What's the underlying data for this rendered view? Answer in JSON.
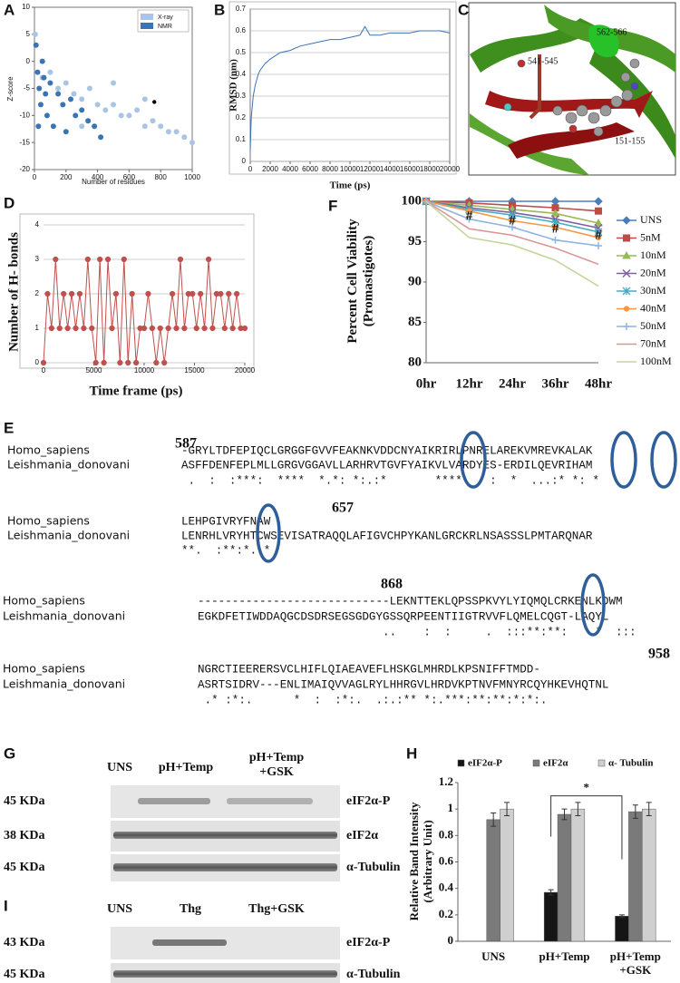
{
  "panel_labels": [
    "A",
    "B",
    "C",
    "D",
    "E",
    "F",
    "G",
    "H",
    "I"
  ],
  "chart_data": [
    {
      "type": "scatter",
      "xlabel": "Number of residues",
      "ylabel": "Z-score",
      "xlim": [
        0,
        1000
      ],
      "ylim": [
        -20,
        10
      ],
      "xticks": [
        0,
        200,
        400,
        600,
        800,
        1000
      ],
      "yticks": [
        10,
        5,
        0,
        -5,
        -10,
        -15,
        -20
      ],
      "grid": false,
      "legend": "upper right",
      "series": [
        {
          "name": "X-ray",
          "color": "#a9c4e4",
          "x": [
            5,
            50,
            100,
            150,
            200,
            250,
            300,
            350,
            400,
            450,
            500,
            550,
            600,
            650,
            700,
            750,
            800,
            850,
            900,
            950,
            1000,
            300,
            500,
            700
          ],
          "values": [
            5,
            -3,
            -2,
            -5,
            -4,
            -6,
            -7,
            -5,
            -8,
            -9,
            -8,
            -10,
            -10,
            -9,
            -12,
            -11,
            -12,
            -13,
            -13,
            -14,
            -15,
            -12,
            -4,
            -7
          ]
        },
        {
          "name": "NMR",
          "color": "#3a74b3",
          "x": [
            10,
            20,
            30,
            40,
            50,
            60,
            80,
            100,
            120,
            150,
            180,
            200,
            230,
            260,
            300,
            340,
            380,
            420,
            25,
            70
          ],
          "values": [
            3,
            -2,
            -5,
            -8,
            0,
            -3,
            -10,
            -4,
            -12,
            -6,
            -8,
            -13,
            -7,
            -10,
            -9,
            -11,
            -12,
            -14,
            -12,
            -6
          ]
        },
        {
          "color": "#000000",
          "x": [
            760
          ],
          "values": [
            -7.5
          ]
        }
      ]
    },
    {
      "type": "line",
      "xlabel": "Time (ps)",
      "ylabel": "RMSD (nm)",
      "xlim": [
        0,
        20000
      ],
      "ylim": [
        0,
        0.7
      ],
      "xticks": [
        0,
        2000,
        4000,
        6000,
        8000,
        10000,
        12000,
        14000,
        16000,
        18000,
        20000
      ],
      "yticks": [
        0,
        0.1,
        0.2,
        0.3,
        0.4,
        0.5,
        0.6,
        0.7
      ],
      "grid": true,
      "x": [
        0,
        100,
        300,
        500,
        800,
        1000,
        1500,
        2000,
        3000,
        4000,
        5000,
        6000,
        7000,
        8000,
        9000,
        10000,
        11000,
        11500,
        12000,
        13000,
        14000,
        15000,
        16000,
        17000,
        18000,
        19000,
        20000
      ],
      "series": [
        {
          "color": "#3a74b3",
          "values": [
            0.05,
            0.2,
            0.3,
            0.35,
            0.4,
            0.42,
            0.45,
            0.47,
            0.5,
            0.51,
            0.53,
            0.54,
            0.55,
            0.56,
            0.56,
            0.57,
            0.58,
            0.62,
            0.58,
            0.58,
            0.59,
            0.59,
            0.59,
            0.6,
            0.6,
            0.6,
            0.59
          ]
        }
      ]
    },
    {
      "type": "line",
      "xlabel": "Time frame (ps)",
      "ylabel": "Number of H- bonds",
      "xlim": [
        0,
        20000
      ],
      "ylim": [
        0,
        4
      ],
      "xticks": [
        0,
        5000,
        10000,
        15000,
        20000
      ],
      "yticks": [
        0,
        1,
        2,
        3,
        4
      ],
      "grid": true,
      "x": [
        0,
        400,
        800,
        1200,
        1600,
        2000,
        2400,
        2800,
        3200,
        3600,
        4000,
        4400,
        4800,
        5200,
        5600,
        6000,
        6400,
        6800,
        7200,
        7600,
        8000,
        8400,
        8800,
        9200,
        9600,
        10000,
        10400,
        10800,
        11200,
        11600,
        12000,
        12400,
        12800,
        13200,
        13600,
        14000,
        14400,
        14800,
        15200,
        15600,
        16000,
        16400,
        16800,
        17200,
        17600,
        18000,
        18400,
        18800,
        19200,
        19600,
        20000
      ],
      "series": [
        {
          "color": "#c0504d",
          "marker": "circle",
          "values": [
            0,
            2,
            1,
            3,
            1,
            2,
            1,
            2,
            1,
            2,
            1,
            3,
            1,
            0,
            3,
            0,
            3,
            1,
            2,
            0,
            3,
            0,
            2,
            0,
            1,
            1,
            2,
            1,
            0,
            1,
            0,
            1,
            2,
            1,
            3,
            1,
            2,
            2,
            1,
            2,
            1,
            3,
            1,
            2,
            2,
            1,
            2,
            1,
            2,
            1,
            1
          ]
        }
      ]
    },
    {
      "type": "line",
      "ylabel": "Percent Cell Viability\n(Promastigotes)",
      "categories": [
        "0hr",
        "12hr",
        "24hr",
        "36hr",
        "48hr"
      ],
      "ylim": [
        80,
        100
      ],
      "yticks": [
        80,
        85,
        90,
        95,
        100
      ],
      "grid": false,
      "legend": "right",
      "series": [
        {
          "name": "UNS",
          "color": "#4a7ebb",
          "marker": "diamond",
          "values": [
            100,
            100,
            100,
            100,
            100
          ]
        },
        {
          "name": "5nM",
          "color": "#be4b48",
          "marker": "square",
          "values": [
            100,
            99.8,
            99.5,
            99.2,
            98.8
          ]
        },
        {
          "name": "10nM",
          "color": "#98b954",
          "marker": "triangle",
          "values": [
            100,
            99.5,
            99,
            98.5,
            97.3
          ]
        },
        {
          "name": "20nM",
          "color": "#7d60a0",
          "marker": "x",
          "values": [
            100,
            99.2,
            98.6,
            97.8,
            96.7
          ]
        },
        {
          "name": "30nM",
          "color": "#46aac5",
          "marker": "star",
          "values": [
            100,
            99,
            98.3,
            97.4,
            96.2
          ]
        },
        {
          "name": "40nM",
          "color": "#f79646",
          "marker": "circle",
          "values": [
            100,
            98.8,
            97.6,
            96.8,
            95.5
          ]
        },
        {
          "name": "50nM",
          "color": "#8eb4e3",
          "marker": "plus",
          "values": [
            100,
            97.8,
            96.8,
            95.2,
            94.5
          ]
        },
        {
          "name": "70nM",
          "color": "#d99694",
          "values": [
            100,
            96.6,
            95.8,
            94.2,
            92.2
          ]
        },
        {
          "name": "100nM",
          "color": "#c3d69b",
          "values": [
            100,
            95.5,
            94.6,
            92.7,
            89.5
          ]
        }
      ],
      "annotations": [
        {
          "text": "#",
          "x": "12hr",
          "y": 98.1
        },
        {
          "text": "#",
          "x": "24hr",
          "y": 97.5
        },
        {
          "text": "#",
          "x": "36hr",
          "y": 96.5
        },
        {
          "text": "#",
          "x": "48hr",
          "y": 95.7
        }
      ]
    },
    {
      "type": "bar",
      "ylabel": "Relative Band Intensity\n(Arbitrary Unit)",
      "categories": [
        "UNS",
        "pH+Temp",
        "pH+Temp\n+GSK"
      ],
      "ylim": [
        0,
        1.2
      ],
      "yticks": [
        0,
        0.2,
        0.4,
        0.6,
        0.8,
        1,
        1.2
      ],
      "grid": false,
      "legend": "top",
      "series": [
        {
          "name": "eIF2α-P",
          "color": "#151515",
          "values": [
            null,
            0.37,
            0.19
          ],
          "errors": [
            null,
            0.02,
            0.01
          ]
        },
        {
          "name": "eIF2α",
          "color": "#7a7a7a",
          "values": [
            0.92,
            0.96,
            0.98
          ],
          "errors": [
            0.05,
            0.04,
            0.05
          ]
        },
        {
          "name": "α- Tubulin",
          "color": "#cfcfcf",
          "values": [
            1,
            1,
            1
          ],
          "errors": [
            0.05,
            0.05,
            0.05
          ]
        }
      ],
      "annotations": [
        {
          "text": "*",
          "from": "pH+Temp",
          "to": "pH+Temp\n+GSK",
          "y": 1.1
        }
      ]
    }
  ],
  "structure": {
    "labels": [
      "541-545",
      "562-566",
      "151-155"
    ]
  },
  "alignment": {
    "blocks": [
      {
        "number": 587,
        "rows": [
          {
            "name": "Homo_sapiens",
            "seq": "-GRYLTDFEPIQCLGRGGFGVVFEAKNKVDDCNYAIKRIRLPNRELAREKVMREVKALAK"
          },
          {
            "name": "Leishmania_donovani",
            "seq": "ASFFDENFEPLMLLGRGVGGAVLLARHRVTGVFYAIKVLVARDYES-ERDILQEVRIHAM"
          }
        ],
        "conservation": " .  :  :***:  ****  *.*: *:.:*       ****    :  *  ...:* *: *"
      },
      {
        "number": 657,
        "rows": [
          {
            "name": "Homo_sapiens",
            "seq": "LEHPGIVRYFNAW"
          },
          {
            "name": "Leishmania_donovani",
            "seq": "LENRHLVRYHTCWSEVISATRAQQLAFIGVCHPYKANLGRCKRLNSASSSLPMTARQNAR"
          }
        ],
        "conservation": "**.  :**:*..*"
      },
      {
        "number": 868,
        "rows": [
          {
            "name": "Homo_sapiens",
            "seq": "----------------------------LEKNTTEKLQPSSPKVYLYIQMQLCRKENLKDWM"
          },
          {
            "name": "Leishmania_donovani",
            "seq": "EGKDFETIWDDAQGCDSDRSEGSGDGYGSSQRPEENTIIGTRVVFLQMELCQGT-LAQYL"
          }
        ],
        "conservation": "                           ..    :  :     .  :::**:**:    *  :::"
      },
      {
        "number": 958,
        "rows": [
          {
            "name": "Homo_sapiens",
            "seq": "NGRCTIEERERSVCLHIFLQIAEAVEFLHSKGLMHRDLKPSNIFFTMDD-"
          },
          {
            "name": "Leishmania_donovani",
            "seq": "ASRTSIDRV---ENLIMAIQVVAGLRYLHHRGVLHRDVKPTNVFMNYRCQYHKEVHQTNL"
          }
        ],
        "conservation": " .* :*:.      *  :  :*:.  .:.:** *:.***:**:**:*:*:."
      }
    ]
  },
  "blots": [
    {
      "columns": [
        "UNS",
        "pH+Temp",
        "pH+Temp\n+GSK"
      ],
      "rows": [
        {
          "size": "45 KDa",
          "protein": "eIF2α-P"
        },
        {
          "size": "38 KDa",
          "protein": "eIF2α"
        },
        {
          "size": "45 KDa",
          "protein": "α-Tubulin"
        }
      ]
    },
    {
      "columns": [
        "UNS",
        "Thg",
        "Thg+GSK"
      ],
      "rows": [
        {
          "size": "43 KDa",
          "protein": "eIF2α-P"
        },
        {
          "size": "45 KDa",
          "protein": "α-Tubulin"
        }
      ]
    }
  ]
}
